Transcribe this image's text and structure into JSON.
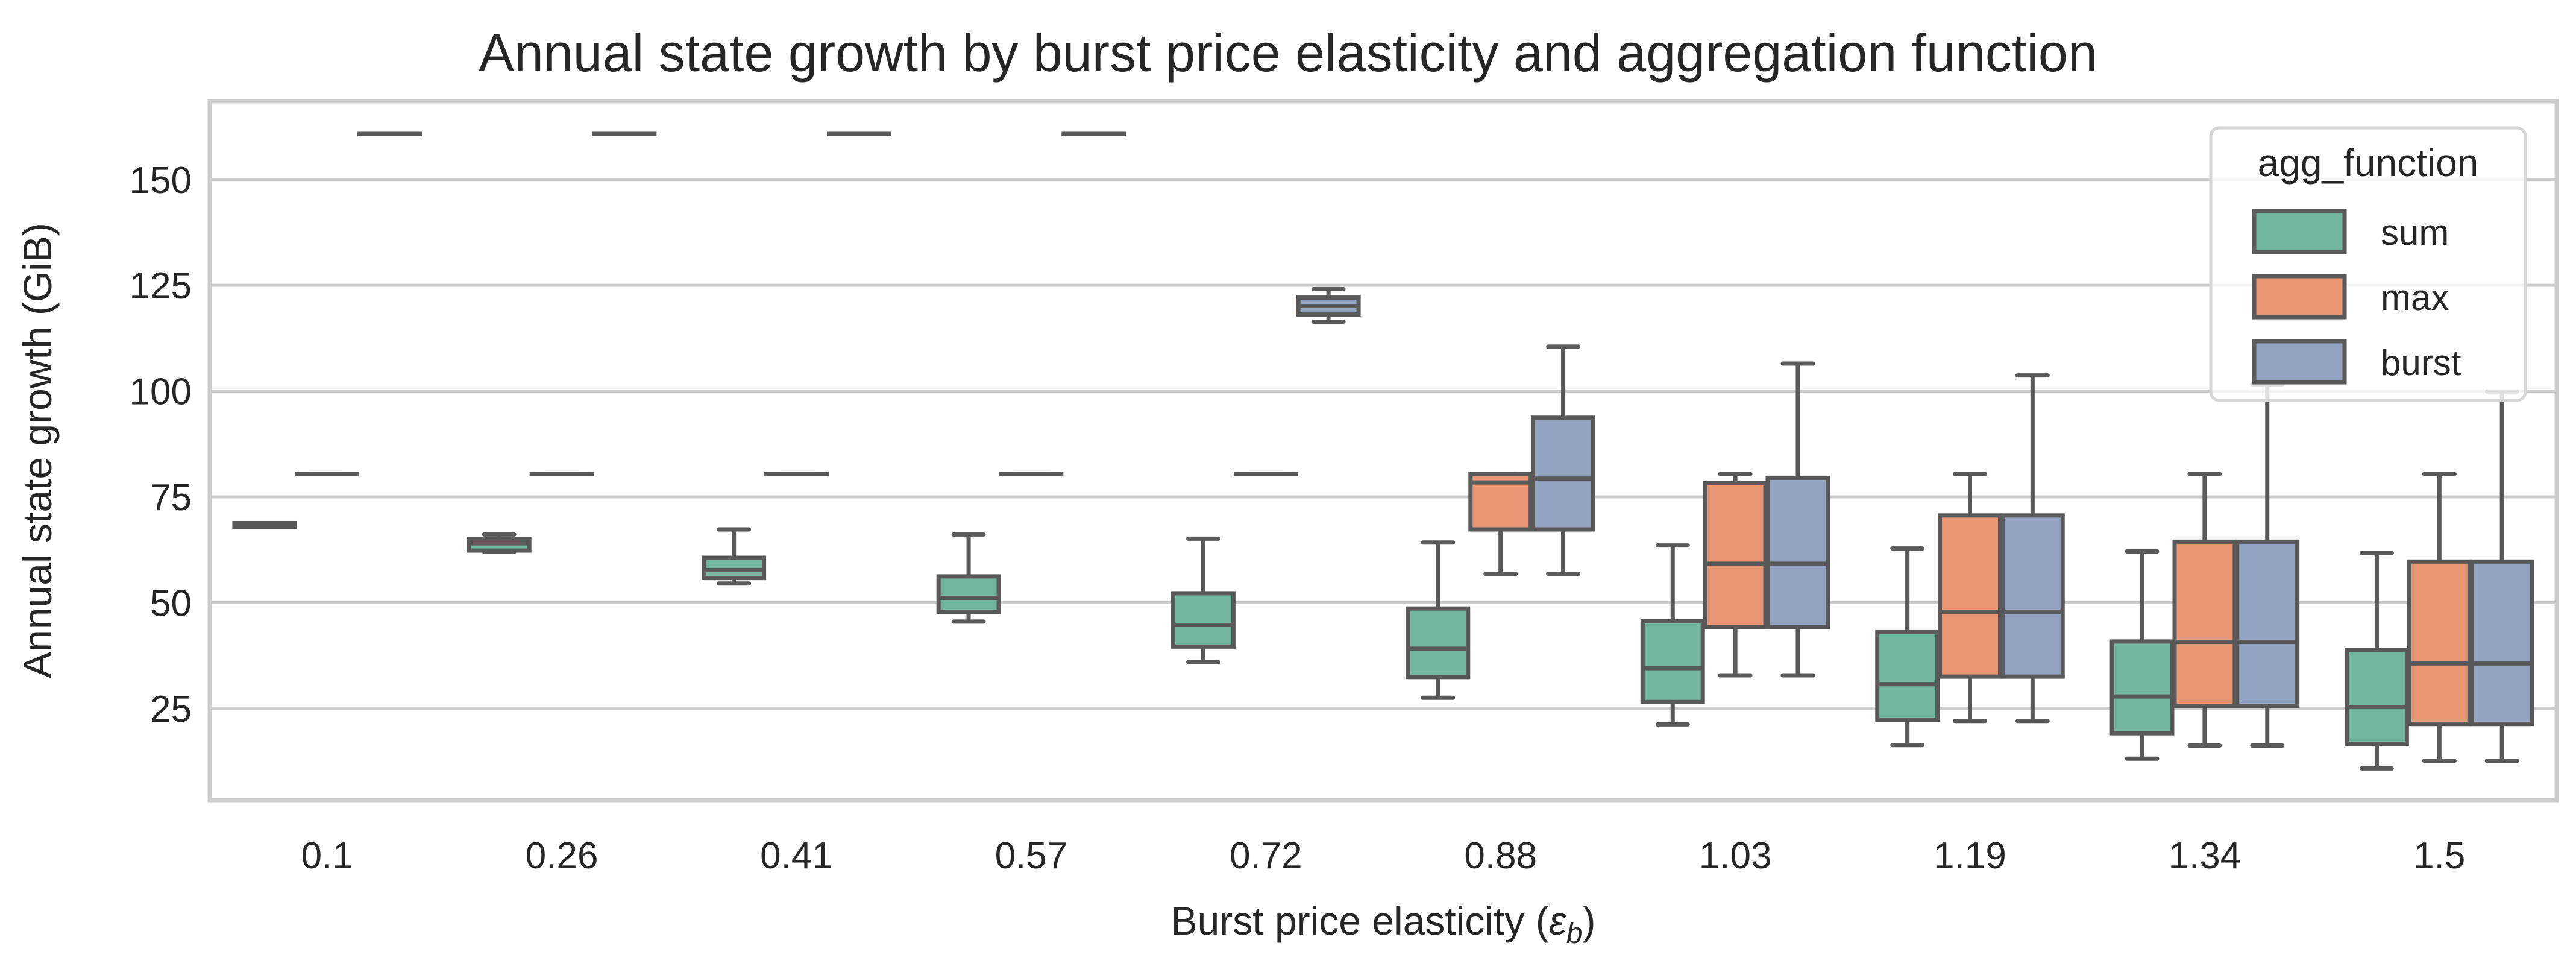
{
  "chart_data": {
    "type": "box",
    "title": "Annual state growth by burst price elasticity and aggregation function",
    "xlabel": {
      "prefix": "Burst price elasticity (",
      "symbol": "ε",
      "subscript": "b",
      "suffix": ")"
    },
    "ylabel": "Annual state growth (GiB)",
    "ylim": [
      3.3,
      168.5
    ],
    "yticks": [
      25,
      50,
      75,
      100,
      125,
      150
    ],
    "grid": "horizontal",
    "legend": {
      "title": "agg_function",
      "placement": "top-right"
    },
    "categories": [
      "0.1",
      "0.26",
      "0.41",
      "0.57",
      "0.72",
      "0.88",
      "1.03",
      "1.19",
      "1.34",
      "1.5"
    ],
    "series": [
      {
        "name": "sum",
        "color": "#72b6a1",
        "boxes": [
          {
            "whislo": 68.0,
            "q1": 67.9,
            "med": 68.4,
            "q3": 68.8,
            "whishi": 68.8
          },
          {
            "whislo": 62.0,
            "q1": 62.3,
            "med": 64.0,
            "q3": 65.1,
            "whishi": 66.1
          },
          {
            "whislo": 54.5,
            "q1": 55.8,
            "med": 57.7,
            "q3": 60.6,
            "whishi": 67.3
          },
          {
            "whislo": 45.5,
            "q1": 47.8,
            "med": 51.1,
            "q3": 56.2,
            "whishi": 66.1
          },
          {
            "whislo": 35.9,
            "q1": 39.6,
            "med": 44.7,
            "q3": 52.2,
            "whishi": 65.1
          },
          {
            "whislo": 27.5,
            "q1": 32.4,
            "med": 39.1,
            "q3": 48.6,
            "whishi": 64.2
          },
          {
            "whislo": 21.2,
            "q1": 26.5,
            "med": 34.5,
            "q3": 45.6,
            "whishi": 63.5
          },
          {
            "whislo": 16.3,
            "q1": 22.3,
            "med": 30.7,
            "q3": 43.0,
            "whishi": 62.8
          },
          {
            "whislo": 13.1,
            "q1": 19.1,
            "med": 27.8,
            "q3": 40.8,
            "whishi": 62.1
          },
          {
            "whislo": 10.8,
            "q1": 16.6,
            "med": 25.3,
            "q3": 38.8,
            "whishi": 61.7
          }
        ]
      },
      {
        "name": "max",
        "color": "#e99675",
        "boxes": [
          {
            "whislo": 80.4,
            "q1": 80.4,
            "med": 80.4,
            "q3": 80.4,
            "whishi": 80.4
          },
          {
            "whislo": 80.4,
            "q1": 80.4,
            "med": 80.4,
            "q3": 80.4,
            "whishi": 80.4
          },
          {
            "whislo": 80.4,
            "q1": 80.4,
            "med": 80.4,
            "q3": 80.4,
            "whishi": 80.4
          },
          {
            "whislo": 80.4,
            "q1": 80.4,
            "med": 80.4,
            "q3": 80.4,
            "whishi": 80.4
          },
          {
            "whislo": 80.4,
            "q1": 80.4,
            "med": 80.4,
            "q3": 80.4,
            "whishi": 80.4
          },
          {
            "whislo": 56.8,
            "q1": 67.3,
            "med": 78.4,
            "q3": 80.4,
            "whishi": 80.4
          },
          {
            "whislo": 32.8,
            "q1": 44.2,
            "med": 59.2,
            "q3": 78.2,
            "whishi": 80.4
          },
          {
            "whislo": 22.0,
            "q1": 32.5,
            "med": 47.8,
            "q3": 70.6,
            "whishi": 80.4
          },
          {
            "whislo": 16.2,
            "q1": 25.6,
            "med": 40.7,
            "q3": 64.4,
            "whishi": 80.4
          },
          {
            "whislo": 12.6,
            "q1": 21.3,
            "med": 35.6,
            "q3": 59.7,
            "whishi": 80.4
          }
        ]
      },
      {
        "name": "burst",
        "color": "#95a3c3",
        "boxes": [
          {
            "whislo": 160.8,
            "q1": 160.8,
            "med": 160.8,
            "q3": 160.8,
            "whishi": 160.8
          },
          {
            "whislo": 160.8,
            "q1": 160.8,
            "med": 160.8,
            "q3": 160.8,
            "whishi": 160.8
          },
          {
            "whislo": 160.8,
            "q1": 160.8,
            "med": 160.8,
            "q3": 160.8,
            "whishi": 160.8
          },
          {
            "whislo": 160.8,
            "q1": 160.8,
            "med": 160.8,
            "q3": 160.8,
            "whishi": 160.8
          },
          {
            "whislo": 116.4,
            "q1": 118.1,
            "med": 120.1,
            "q3": 122.1,
            "whishi": 124.1
          },
          {
            "whislo": 56.8,
            "q1": 67.3,
            "med": 79.3,
            "q3": 93.7,
            "whishi": 110.5
          },
          {
            "whislo": 32.8,
            "q1": 44.2,
            "med": 59.2,
            "q3": 79.5,
            "whishi": 106.5
          },
          {
            "whislo": 22.0,
            "q1": 32.5,
            "med": 47.8,
            "q3": 70.6,
            "whishi": 103.7
          },
          {
            "whislo": 16.2,
            "q1": 25.6,
            "med": 40.7,
            "q3": 64.4,
            "whishi": 101.6
          },
          {
            "whislo": 12.6,
            "q1": 21.3,
            "med": 35.6,
            "q3": 59.7,
            "whishi": 99.9
          }
        ]
      }
    ]
  },
  "colors": {
    "grid": "#cccccc",
    "spine": "#cccccc",
    "box_edge": "#595959",
    "text": "#262626"
  }
}
